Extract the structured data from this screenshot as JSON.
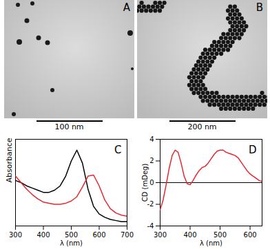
{
  "chart_data": [
    {
      "type": "image",
      "title": "A",
      "annotations": [
        "100 nm"
      ]
    },
    {
      "type": "image",
      "title": "B",
      "annotations": [
        "200 nm"
      ]
    },
    {
      "type": "line",
      "title": "C",
      "x_label": "λ (nm)",
      "y_label": "Absorbance",
      "x": [
        300,
        320,
        340,
        360,
        380,
        400,
        420,
        440,
        460,
        480,
        500,
        520,
        540,
        560,
        580,
        600,
        620,
        640,
        660,
        680,
        700
      ],
      "series": [
        {
          "color": "#000000",
          "values": [
            0.42,
            0.4,
            0.37,
            0.35,
            0.33,
            0.31,
            0.31,
            0.33,
            0.37,
            0.46,
            0.6,
            0.7,
            0.58,
            0.34,
            0.18,
            0.11,
            0.08,
            0.06,
            0.05,
            0.04,
            0.04
          ]
        },
        {
          "color": "#e8262b",
          "values": [
            0.46,
            0.4,
            0.34,
            0.29,
            0.25,
            0.22,
            0.21,
            0.2,
            0.2,
            0.21,
            0.23,
            0.27,
            0.36,
            0.46,
            0.47,
            0.37,
            0.24,
            0.16,
            0.12,
            0.1,
            0.09
          ]
        }
      ],
      "xlim": [
        300,
        700
      ],
      "xticks": [
        300,
        400,
        500,
        600,
        700
      ],
      "ylim": [
        0,
        0.8
      ],
      "tick_labels": "x"
    },
    {
      "type": "line",
      "title": "D",
      "x_label": "λ (nm)",
      "y_label": "CD (mDeg)",
      "x": [
        300,
        310,
        320,
        330,
        340,
        350,
        360,
        370,
        380,
        390,
        400,
        410,
        420,
        430,
        440,
        450,
        460,
        470,
        480,
        490,
        500,
        510,
        520,
        530,
        540,
        550,
        560,
        570,
        580,
        590,
        600,
        610,
        620,
        630,
        640
      ],
      "series": [
        {
          "color": "#e8262b",
          "values": [
            -2.5,
            -1.6,
            -0.2,
            1.3,
            2.5,
            3.0,
            2.8,
            1.8,
            0.6,
            -0.1,
            -0.2,
            0.2,
            0.7,
            1.1,
            1.4,
            1.5,
            1.8,
            2.2,
            2.6,
            2.9,
            3.0,
            3.0,
            2.8,
            2.7,
            2.6,
            2.5,
            2.3,
            1.9,
            1.5,
            1.1,
            0.8,
            0.6,
            0.4,
            0.2,
            0.1
          ]
        }
      ],
      "xlim": [
        300,
        640
      ],
      "xticks": [
        300,
        400,
        500,
        600
      ],
      "ylim": [
        -4,
        4
      ],
      "yticks": [
        -4,
        -2,
        0,
        2,
        4
      ],
      "reference_lines": [
        0
      ]
    }
  ]
}
